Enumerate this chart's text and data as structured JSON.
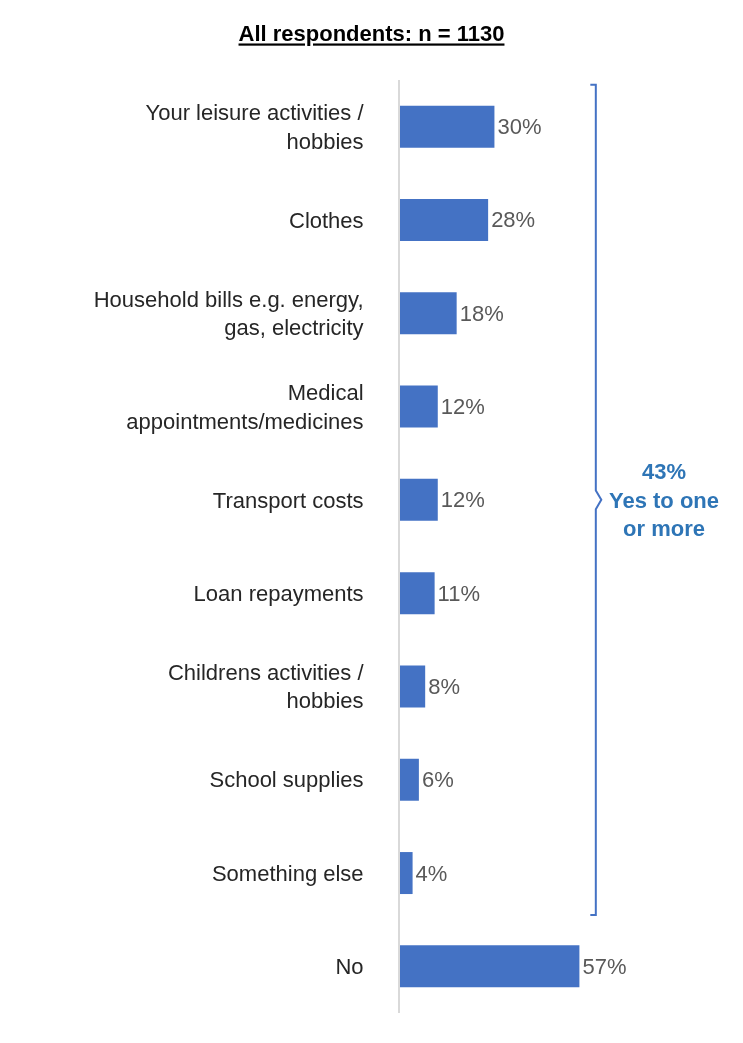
{
  "chart_data": {
    "type": "bar",
    "orientation": "horizontal",
    "title": "All respondents: n = 1130",
    "categories": [
      "Your leisure activities / hobbies",
      "Clothes",
      "Household bills e.g. energy, gas, electricity",
      "Medical appointments/medicines",
      "Transport costs",
      "Loan repayments",
      "Childrens activities / hobbies",
      "School supplies",
      "Something else",
      "No"
    ],
    "values": [
      30,
      28,
      18,
      12,
      12,
      11,
      8,
      6,
      4,
      57
    ],
    "value_labels": [
      "30%",
      "28%",
      "18%",
      "12%",
      "12%",
      "11%",
      "8%",
      "6%",
      "4%",
      "57%"
    ],
    "color": "#4472c4",
    "annotations": [
      "43%\nYes to one\nor more"
    ]
  }
}
